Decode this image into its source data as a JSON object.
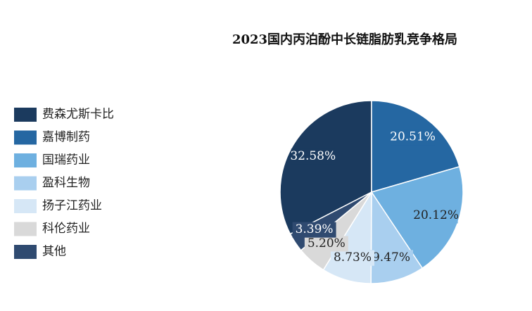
{
  "chart_data": {
    "type": "pie",
    "title": "2023国内丙泊酚中长链脂肪乳竞争格局",
    "categories": [
      "费森尤斯卡比",
      "嘉博制药",
      "国瑞药业",
      "盈科生物",
      "扬子江药业",
      "科伦药业",
      "其他"
    ],
    "values": [
      32.58,
      20.51,
      20.12,
      9.47,
      8.73,
      5.2,
      3.39
    ],
    "value_labels": [
      "32.58%",
      "20.51%",
      "20.12%",
      "9.47%",
      "8.73%",
      "5.20%",
      "3.39%"
    ],
    "colors": [
      "#1b3a5e",
      "#2567a2",
      "#6eb0e0",
      "#a9cfef",
      "#d6e7f6",
      "#d9d9d9",
      "#2f4a70"
    ],
    "legend": "left"
  }
}
